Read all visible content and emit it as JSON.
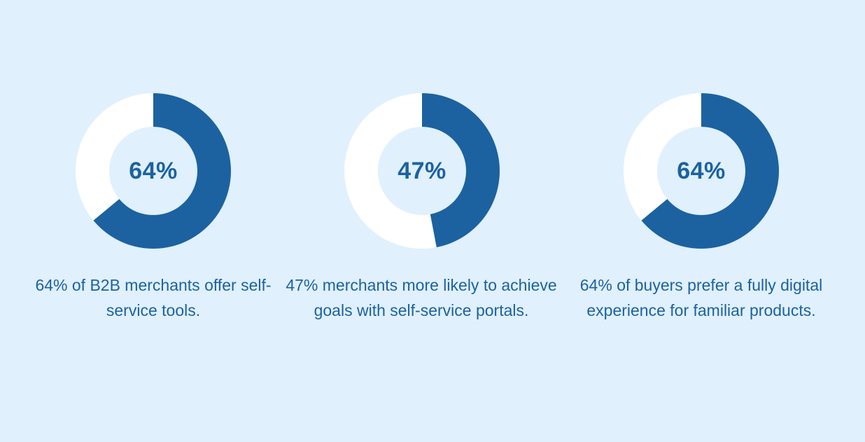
{
  "colors": {
    "background": "#e0f0fd",
    "filled": "#1c62a0",
    "remainder": "#ffffff",
    "text": "#1c62a0"
  },
  "chart_data": [
    {
      "type": "pie",
      "style": "donut",
      "value_percent": 64,
      "center_label": "64%",
      "caption": "64% of B2B merchants offer self-service tools."
    },
    {
      "type": "pie",
      "style": "donut",
      "value_percent": 47,
      "center_label": "47%",
      "caption": "47% merchants more likely to achieve goals with self-service portals."
    },
    {
      "type": "pie",
      "style": "donut",
      "value_percent": 64,
      "center_label": "64%",
      "caption": "64% of buyers prefer a fully digital experience for familiar products."
    }
  ]
}
